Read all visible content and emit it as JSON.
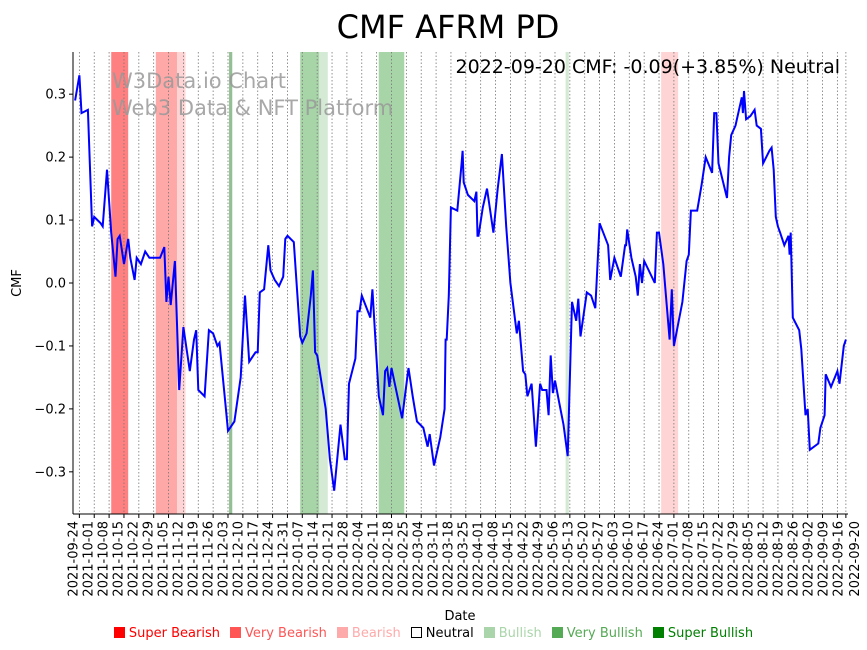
{
  "chart_data": {
    "type": "line",
    "title": "CMF AFRM PD",
    "annotation": "2022-09-20 CMF: -0.09(+3.85%) Neutral",
    "watermark": [
      "W3Data.io Chart",
      "Web3 Data & NFT Platform"
    ],
    "xlabel": "Date",
    "ylabel": "CMF",
    "x_unit": "days since 2021-09-24",
    "xlim": [
      -3,
      362
    ],
    "ylim": [
      -0.367,
      0.367
    ],
    "yticks": [
      -0.3,
      -0.2,
      -0.1,
      0.0,
      0.1,
      0.2,
      0.3
    ],
    "ytick_labels": [
      "−0.3",
      "−0.2",
      "−0.1",
      "0.0",
      "0.1",
      "0.2",
      "0.3"
    ],
    "xticks": [
      0,
      7,
      14,
      21,
      28,
      35,
      42,
      49,
      56,
      63,
      70,
      77,
      84,
      91,
      98,
      105,
      112,
      119,
      126,
      133,
      140,
      147,
      154,
      161,
      168,
      175,
      182,
      189,
      196,
      203,
      210,
      217,
      224,
      231,
      238,
      245,
      252,
      259,
      266,
      273,
      280,
      287,
      294,
      301,
      308,
      315,
      322,
      329,
      336,
      343,
      350,
      357,
      361
    ],
    "xtick_labels": [
      "2021-09-24",
      "2021-10-01",
      "2021-10-08",
      "2021-10-15",
      "2021-10-22",
      "2021-10-29",
      "2021-11-05",
      "2021-11-12",
      "2021-11-19",
      "2021-11-26",
      "2021-12-03",
      "2021-12-10",
      "2021-12-17",
      "2021-12-24",
      "2021-12-31",
      "2022-01-07",
      "2022-01-14",
      "2022-01-21",
      "2022-01-28",
      "2022-02-04",
      "2022-02-11",
      "2022-02-18",
      "2022-02-25",
      "2022-03-04",
      "2022-03-11",
      "2022-03-18",
      "2022-03-25",
      "2022-04-01",
      "2022-04-08",
      "2022-04-15",
      "2022-04-22",
      "2022-04-29",
      "2022-05-06",
      "2022-05-13",
      "2022-05-20",
      "2022-05-27",
      "2022-06-03",
      "2022-06-10",
      "2022-06-17",
      "2022-06-24",
      "2022-07-01",
      "2022-07-08",
      "2022-07-15",
      "2022-07-22",
      "2022-07-29",
      "2022-08-05",
      "2022-08-12",
      "2022-08-19",
      "2022-08-26",
      "2022-09-02",
      "2022-09-09",
      "2022-09-16",
      "2022-09-20"
    ],
    "grid": "x dotted",
    "line_color": "#0000ff",
    "series": [
      {
        "name": "CMF",
        "points": [
          [
            -2,
            0.29
          ],
          [
            0,
            0.33
          ],
          [
            1,
            0.27
          ],
          [
            4,
            0.275
          ],
          [
            6,
            0.09
          ],
          [
            7,
            0.105
          ],
          [
            10,
            0.095
          ],
          [
            11,
            0.09
          ],
          [
            13,
            0.18
          ],
          [
            15,
            0.08
          ],
          [
            17,
            0.01
          ],
          [
            18,
            0.07
          ],
          [
            19,
            0.075
          ],
          [
            21,
            0.03
          ],
          [
            23,
            0.07
          ],
          [
            24,
            0.04
          ],
          [
            26,
            0.005
          ],
          [
            27,
            0.04
          ],
          [
            29,
            0.03
          ],
          [
            31,
            0.05
          ],
          [
            33,
            0.04
          ],
          [
            38,
            0.04
          ],
          [
            40,
            0.057
          ],
          [
            41,
            -0.03
          ],
          [
            42,
            0.01
          ],
          [
            43,
            -0.035
          ],
          [
            45,
            0.035
          ],
          [
            47,
            -0.17
          ],
          [
            49,
            -0.07
          ],
          [
            52,
            -0.14
          ],
          [
            54,
            -0.09
          ],
          [
            55,
            -0.075
          ],
          [
            56,
            -0.17
          ],
          [
            59,
            -0.18
          ],
          [
            61,
            -0.075
          ],
          [
            63,
            -0.08
          ],
          [
            65,
            -0.1
          ],
          [
            66,
            -0.095
          ],
          [
            69,
            -0.2
          ],
          [
            70,
            -0.235
          ],
          [
            73,
            -0.22
          ],
          [
            76,
            -0.15
          ],
          [
            78,
            -0.02
          ],
          [
            80,
            -0.125
          ],
          [
            83,
            -0.11
          ],
          [
            84,
            -0.11
          ],
          [
            85,
            -0.015
          ],
          [
            87,
            -0.01
          ],
          [
            89,
            0.06
          ],
          [
            90,
            0.02
          ],
          [
            92,
            0.005
          ],
          [
            94,
            -0.005
          ],
          [
            96,
            0.01
          ],
          [
            97,
            0.07
          ],
          [
            98,
            0.075
          ],
          [
            101,
            0.065
          ],
          [
            104,
            -0.085
          ],
          [
            105,
            -0.095
          ],
          [
            107,
            -0.08
          ],
          [
            109,
            -0.02
          ],
          [
            110,
            0.02
          ],
          [
            111,
            -0.11
          ],
          [
            112,
            -0.115
          ],
          [
            116,
            -0.2
          ],
          [
            118,
            -0.28
          ],
          [
            120,
            -0.33
          ],
          [
            123,
            -0.225
          ],
          [
            125,
            -0.28
          ],
          [
            126,
            -0.28
          ],
          [
            127,
            -0.16
          ],
          [
            130,
            -0.12
          ],
          [
            131,
            -0.045
          ],
          [
            132,
            -0.045
          ],
          [
            133,
            -0.02
          ],
          [
            137,
            -0.055
          ],
          [
            138,
            -0.01
          ],
          [
            141,
            -0.18
          ],
          [
            143,
            -0.21
          ],
          [
            144,
            -0.14
          ],
          [
            145,
            -0.135
          ],
          [
            146,
            -0.165
          ],
          [
            147,
            -0.135
          ],
          [
            152,
            -0.215
          ],
          [
            155,
            -0.135
          ],
          [
            157,
            -0.18
          ],
          [
            158,
            -0.2
          ],
          [
            159,
            -0.22
          ],
          [
            162,
            -0.23
          ],
          [
            164,
            -0.26
          ],
          [
            165,
            -0.24
          ],
          [
            167,
            -0.29
          ],
          [
            170,
            -0.245
          ],
          [
            172,
            -0.2
          ],
          [
            172.5,
            -0.09
          ],
          [
            173,
            -0.09
          ],
          [
            174,
            -0.02
          ],
          [
            175,
            0.12
          ],
          [
            178,
            0.115
          ],
          [
            180,
            0.19
          ],
          [
            180.5,
            0.21
          ],
          [
            181,
            0.16
          ],
          [
            183,
            0.14
          ],
          [
            186,
            0.13
          ],
          [
            187,
            0.145
          ],
          [
            187.5,
            0.075
          ],
          [
            188,
            0.075
          ],
          [
            190,
            0.12
          ],
          [
            192,
            0.15
          ],
          [
            195,
            0.08
          ],
          [
            197,
            0.15
          ],
          [
            199,
            0.205
          ],
          [
            201,
            0.09
          ],
          [
            203,
            0.0
          ],
          [
            206,
            -0.08
          ],
          [
            207,
            -0.06
          ],
          [
            209,
            -0.14
          ],
          [
            210,
            -0.145
          ],
          [
            211,
            -0.18
          ],
          [
            213,
            -0.16
          ],
          [
            215,
            -0.26
          ],
          [
            217,
            -0.16
          ],
          [
            218,
            -0.17
          ],
          [
            220,
            -0.17
          ],
          [
            221,
            -0.21
          ],
          [
            222,
            -0.115
          ],
          [
            223,
            -0.175
          ],
          [
            224,
            -0.155
          ],
          [
            226,
            -0.19
          ],
          [
            228,
            -0.225
          ],
          [
            230,
            -0.275
          ],
          [
            232,
            -0.03
          ],
          [
            234,
            -0.06
          ],
          [
            235,
            -0.025
          ],
          [
            236,
            -0.085
          ],
          [
            239,
            -0.015
          ],
          [
            241,
            -0.02
          ],
          [
            243,
            -0.04
          ],
          [
            245,
            0.095
          ],
          [
            249,
            0.06
          ],
          [
            250,
            0.005
          ],
          [
            252,
            0.04
          ],
          [
            255,
            0.01
          ],
          [
            257,
            0.06
          ],
          [
            257.5,
            0.06
          ],
          [
            258,
            0.085
          ],
          [
            260,
            0.04
          ],
          [
            262,
            0.01
          ],
          [
            263,
            -0.02
          ],
          [
            264,
            0.03
          ],
          [
            265,
            0.0
          ],
          [
            266,
            0.035
          ],
          [
            271,
            0.0
          ],
          [
            272,
            0.08
          ],
          [
            273,
            0.08
          ],
          [
            275,
            0.03
          ],
          [
            278,
            -0.09
          ],
          [
            279,
            -0.01
          ],
          [
            280,
            -0.1
          ],
          [
            284,
            -0.03
          ],
          [
            286,
            0.035
          ],
          [
            287,
            0.045
          ],
          [
            288,
            0.115
          ],
          [
            291,
            0.115
          ],
          [
            293,
            0.155
          ],
          [
            295,
            0.2
          ],
          [
            298,
            0.175
          ],
          [
            299,
            0.27
          ],
          [
            300,
            0.27
          ],
          [
            301,
            0.19
          ],
          [
            305,
            0.135
          ],
          [
            306,
            0.2
          ],
          [
            307,
            0.235
          ],
          [
            309,
            0.25
          ],
          [
            312,
            0.295
          ],
          [
            312.5,
            0.27
          ],
          [
            313,
            0.305
          ],
          [
            314,
            0.26
          ],
          [
            316,
            0.265
          ],
          [
            318,
            0.275
          ],
          [
            319,
            0.25
          ],
          [
            321,
            0.245
          ],
          [
            322,
            0.19
          ],
          [
            325,
            0.21
          ],
          [
            326,
            0.215
          ],
          [
            327,
            0.18
          ],
          [
            328,
            0.105
          ],
          [
            329,
            0.09
          ],
          [
            330,
            0.08
          ],
          [
            332,
            0.06
          ],
          [
            334,
            0.075
          ],
          [
            334.5,
            0.045
          ],
          [
            335,
            0.08
          ],
          [
            336,
            -0.055
          ],
          [
            339,
            -0.075
          ],
          [
            340,
            -0.105
          ],
          [
            342,
            -0.21
          ],
          [
            343,
            -0.2
          ],
          [
            344,
            -0.265
          ],
          [
            348,
            -0.255
          ],
          [
            349,
            -0.23
          ],
          [
            351,
            -0.21
          ],
          [
            351.5,
            -0.145
          ],
          [
            354,
            -0.165
          ],
          [
            357,
            -0.14
          ],
          [
            358,
            -0.16
          ],
          [
            360,
            -0.1
          ],
          [
            361,
            -0.09
          ]
        ]
      }
    ],
    "regions": [
      {
        "start": 15,
        "end": 23,
        "label": "Very Bearish",
        "color": "#ff8080"
      },
      {
        "start": 36,
        "end": 46,
        "label": "Bearish",
        "color": "#ffa8a8"
      },
      {
        "start": 46,
        "end": 50,
        "label": "Bearish",
        "color": "#ffd4d4"
      },
      {
        "start": 70.5,
        "end": 72,
        "label": "Very Bullish",
        "color": "#94bf94"
      },
      {
        "start": 104,
        "end": 113,
        "label": "Bullish",
        "color": "#a8d5a8"
      },
      {
        "start": 113,
        "end": 117,
        "label": "Bullish",
        "color": "#d4ead4"
      },
      {
        "start": 141,
        "end": 153,
        "label": "Bullish",
        "color": "#a8d5a8"
      },
      {
        "start": 229,
        "end": 230.5,
        "label": "Bullish",
        "color": "#d4ead4"
      },
      {
        "start": 274,
        "end": 282,
        "label": "Bearish",
        "color": "#ffd4d4"
      }
    ],
    "legend": [
      {
        "label": "Super Bearish",
        "color": "#ff0000"
      },
      {
        "label": "Very Bearish",
        "color": "#ff5555"
      },
      {
        "label": "Bearish",
        "color": "#ffaaaa"
      },
      {
        "label": "Neutral",
        "color": "#000000"
      },
      {
        "label": "Bullish",
        "color": "#aad5aa"
      },
      {
        "label": "Very Bullish",
        "color": "#55aa55"
      },
      {
        "label": "Super Bullish",
        "color": "#008000"
      }
    ],
    "legend_position": "bottom"
  }
}
